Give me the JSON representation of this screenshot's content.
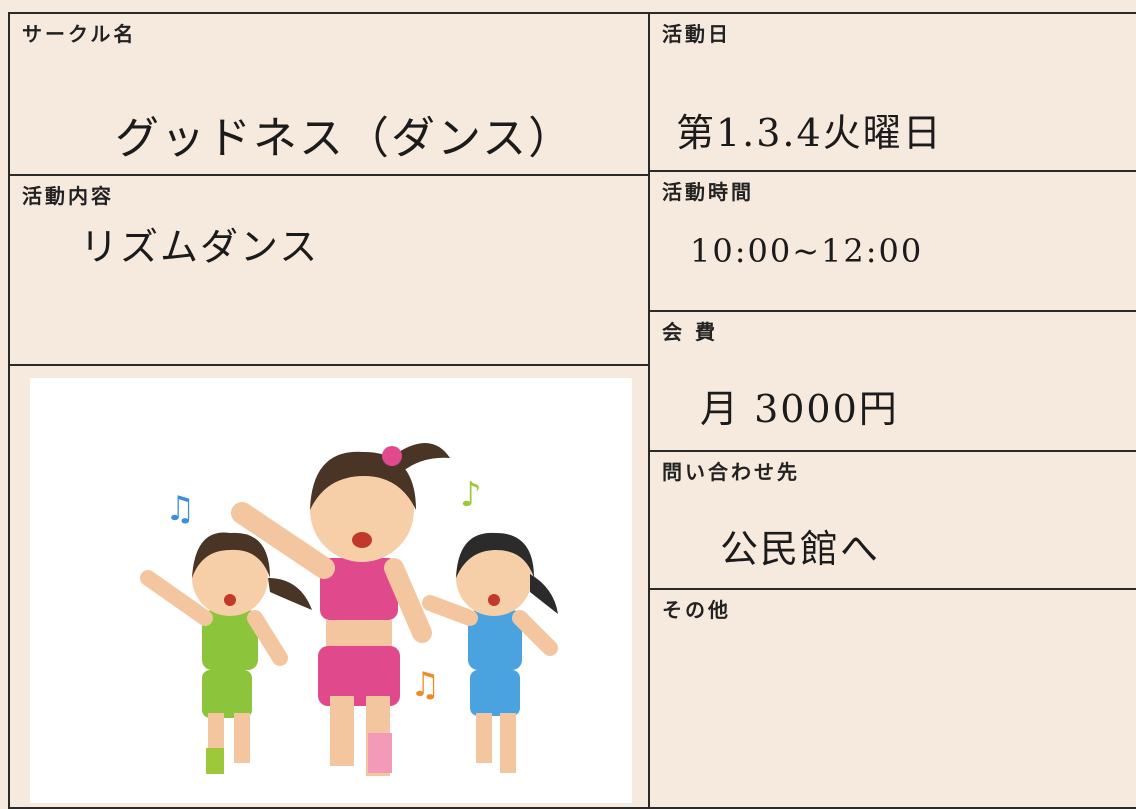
{
  "left": [
    {
      "label": "サークル名",
      "value": "グッドネス（ダンス）"
    },
    {
      "label": "活動内容",
      "value": "リズムダンス"
    }
  ],
  "right": [
    {
      "label": "活動日",
      "value": "第1.3.4火曜日"
    },
    {
      "label": "活動時間",
      "value": "10:00~12:00"
    },
    {
      "label": "会 費",
      "value": "月 3000円"
    },
    {
      "label": "問い合わせ先",
      "value": "公民館へ"
    },
    {
      "label": "その他"
    }
  ]
}
